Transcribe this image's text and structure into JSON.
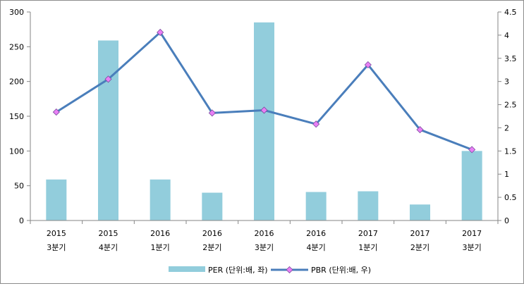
{
  "chart_data": {
    "type": "bar+line",
    "categories": [
      [
        "2015",
        "3분기"
      ],
      [
        "2015",
        "4분기"
      ],
      [
        "2016",
        "1분기"
      ],
      [
        "2016",
        "2분기"
      ],
      [
        "2016",
        "3분기"
      ],
      [
        "2016",
        "4분기"
      ],
      [
        "2017",
        "1분기"
      ],
      [
        "2017",
        "2분기"
      ],
      [
        "2017",
        "3분기"
      ]
    ],
    "series": [
      {
        "name": "PER (단위:배, 좌)",
        "type": "bar",
        "axis": "left",
        "color": "#92cddc",
        "values": [
          59,
          259,
          59,
          40,
          285,
          41,
          42,
          23,
          100
        ]
      },
      {
        "name": "PBR (단위:배, 우)",
        "type": "line",
        "axis": "right",
        "color": "#4a7ebb",
        "marker_color": "#e97ff5",
        "values": [
          2.34,
          3.05,
          4.06,
          2.32,
          2.38,
          2.08,
          3.36,
          1.96,
          1.53
        ]
      }
    ],
    "y_left": {
      "min": 0,
      "max": 300,
      "ticks": [
        "0",
        "50",
        "100",
        "150",
        "200",
        "250",
        "300"
      ]
    },
    "y_right": {
      "min": 0,
      "max": 4.5,
      "ticks": [
        "0",
        "0.5",
        "1",
        "1.5",
        "2",
        "2.5",
        "3",
        "3.5",
        "4",
        "4.5"
      ]
    },
    "grid": false,
    "legend": "bottom"
  }
}
